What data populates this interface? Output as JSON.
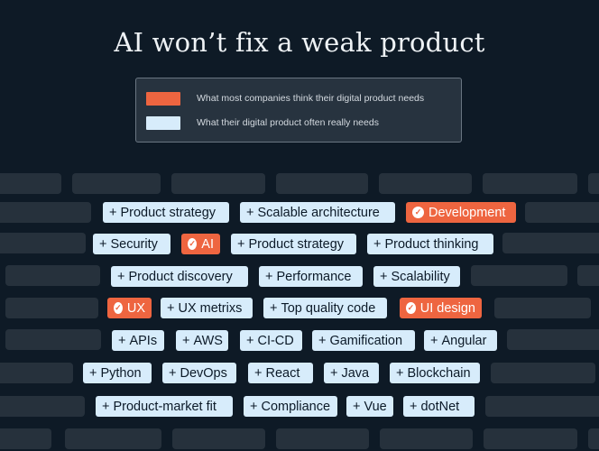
{
  "title": "AI won’t fix a weak product",
  "legend": {
    "items": [
      {
        "label": "What most companies think their digital product needs",
        "color": "#ee6540"
      },
      {
        "label": "What their digital product often really needs",
        "color": "#d7ecfb"
      }
    ]
  },
  "chips": {
    "product_strategy_1": "Product strategy",
    "scalable_architecture": "Scalable architecture",
    "development": "Development",
    "security": "Security",
    "ai": "AI",
    "product_strategy_2": "Product strategy",
    "product_thinking": "Product thinking",
    "product_discovery": "Product discovery",
    "performance": "Performance",
    "scalability": "Scalability",
    "ux": "UX",
    "ux_metrixs": "UX metrixs",
    "top_quality_code": "Top quality code",
    "ui_design": "UI design",
    "apis": "APIs",
    "aws": "AWS",
    "ci_cd": "CI-CD",
    "gamification": "Gamification",
    "angular": "Angular",
    "python": "Python",
    "devops": "DevOps",
    "react": "React",
    "java": "Java",
    "blockchain": "Blockchain",
    "product_market_fit": "Product-market fit",
    "compliance": "Compliance",
    "vue": "Vue",
    "dotnet": "dotNet"
  },
  "symbols": {
    "plus": "+",
    "check": "✓"
  },
  "colors": {
    "background": "#0e1a26",
    "real_need": "#d7ecfb",
    "perceived_need": "#ee6540",
    "ghost": "#26313c"
  }
}
